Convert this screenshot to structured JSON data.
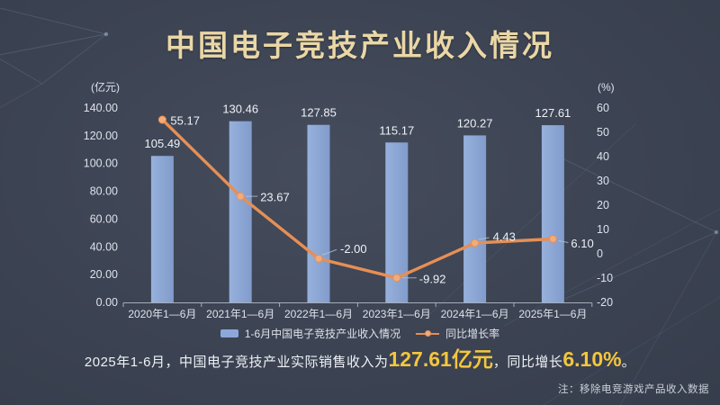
{
  "title": "中国电子竞技产业收入情况",
  "chart_data": {
    "type": "bar",
    "subtype": "bar+line combo, dual axis",
    "categories": [
      "2020年1—6月",
      "2021年1—6月",
      "2022年1—6月",
      "2023年1—6月",
      "2024年1—6月",
      "2025年1—6月"
    ],
    "series": [
      {
        "name": "1-6月中国电子竞技产业收入情况",
        "type": "bar",
        "axis": "left",
        "unit": "亿元",
        "color": "#8ca8d8",
        "values": [
          105.49,
          130.46,
          127.85,
          115.17,
          120.27,
          127.61
        ]
      },
      {
        "name": "同比增长率",
        "type": "line",
        "axis": "right",
        "unit": "%",
        "color": "#e68f55",
        "dot_color": "#f2ab7a",
        "values": [
          55.17,
          23.67,
          -2.0,
          -9.92,
          4.43,
          6.1
        ]
      }
    ],
    "left_axis": {
      "label": "(亿元)",
      "min": 0,
      "max": 140,
      "ticks": [
        "140.00",
        "120.00",
        "100.00",
        "80.00",
        "60.00",
        "40.00",
        "20.00",
        "0.00"
      ]
    },
    "right_axis": {
      "label": "(%)",
      "min": -20,
      "max": 60,
      "ticks": [
        "60",
        "50",
        "40",
        "30",
        "20",
        "10",
        "0",
        "-10",
        "-20"
      ]
    },
    "grid": false,
    "legend_position": "bottom"
  },
  "summary": {
    "part1": "2025年1-6月，中国电子竞技产业实际销售收入为",
    "revenue": "127.61亿元",
    "part2": "，同比增长",
    "growth": "6.10%",
    "part3": "。"
  },
  "footnote": "注：移除电竞游戏产品收入数据",
  "colors": {
    "background": "#3c4353",
    "title": "#ead7a6",
    "text": "#e3e7ee",
    "bar": "#8ca8d8",
    "line": "#e68f55",
    "dot": "#f2ab7a",
    "gold": "#f3c63d",
    "axis": "#b9c0cb"
  }
}
